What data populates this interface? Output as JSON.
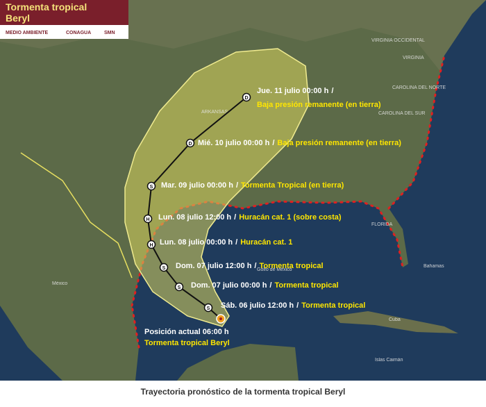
{
  "header": {
    "title_lines": [
      "Tormenta tropical",
      "Beryl"
    ],
    "logos": [
      "MEDIO AMBIENTE",
      "CONAGUA",
      "SMN"
    ]
  },
  "map": {
    "place_labels": [
      "VIRGINIA OCCIDENTAL",
      "VIRGINIA",
      "CAROLINA DEL NORTE",
      "CAROLINA DEL SUR",
      "ARKANSAS",
      "FLORIDA",
      "Golfo de México",
      "México",
      "Bahamas",
      "Cuba",
      "Islas Caimán"
    ],
    "current_position": {
      "symbol": "",
      "label": "Posición actual 06:00 h",
      "status": "Tormenta tropical Beryl"
    },
    "separator": "/",
    "forecast_points": [
      {
        "symbol": "S",
        "date": "Sáb. 06 julio 12:00 h",
        "status": "Tormenta tropical"
      },
      {
        "symbol": "S",
        "date": "Dom. 07 julio 00:00 h",
        "status": "Tormenta tropical"
      },
      {
        "symbol": "S",
        "date": "Dom. 07 julio 12:00 h",
        "status": "Tormenta tropical"
      },
      {
        "symbol": "H",
        "date": "Lun. 08 julio 00:00 h",
        "status": "Huracán cat. 1"
      },
      {
        "symbol": "H",
        "date": "Lun. 08 julio 12:00 h",
        "status": "Huracán cat. 1 (sobre costa)"
      },
      {
        "symbol": "S",
        "date": "Mar. 09 julio 00:00 h",
        "status": "Tormenta Tropical (en tierra)"
      },
      {
        "symbol": "D",
        "date": "Mié. 10 julio 00:00 h",
        "status": "Baja presión remanente (en tierra)"
      },
      {
        "symbol": "D",
        "date": "Jue. 11 julio 00:00 h",
        "status": "Baja presión remanente (en tierra)"
      }
    ]
  },
  "caption": "Trayectoria pronóstico de la tormenta tropical Beryl"
}
